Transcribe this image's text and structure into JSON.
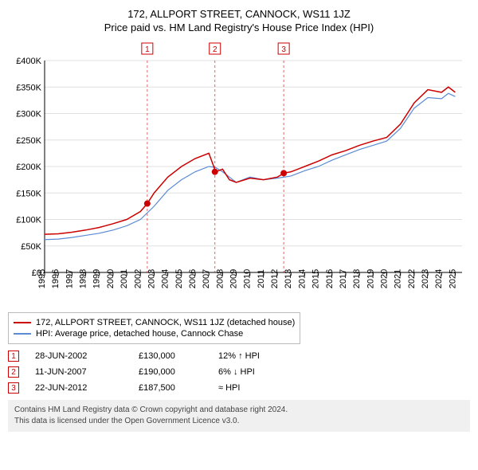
{
  "header": {
    "address": "172, ALLPORT STREET, CANNOCK, WS11 1JZ",
    "subtitle": "Price paid vs. HM Land Registry's House Price Index (HPI)"
  },
  "chart": {
    "type": "line",
    "background_color": "#ffffff",
    "grid_color": "#e0e0e0",
    "axis_color": "#000000",
    "xlim": [
      1995,
      2025.5
    ],
    "ylim": [
      0,
      400000
    ],
    "ytick_step": 50000,
    "yticks": [
      "£0",
      "£50K",
      "£100K",
      "£150K",
      "£200K",
      "£250K",
      "£300K",
      "£350K",
      "£400K"
    ],
    "xticks": [
      1995,
      1996,
      1997,
      1998,
      1999,
      2000,
      2001,
      2002,
      2003,
      2004,
      2005,
      2006,
      2007,
      2008,
      2009,
      2010,
      2011,
      2012,
      2013,
      2014,
      2015,
      2016,
      2017,
      2018,
      2019,
      2020,
      2021,
      2022,
      2023,
      2024,
      2025
    ],
    "series": [
      {
        "name": "172, ALLPORT STREET, CANNOCK, WS11 1JZ (detached house)",
        "color": "#cc0000",
        "line_width": 1.5,
        "data": [
          [
            1995,
            72000
          ],
          [
            1996,
            73000
          ],
          [
            1997,
            76000
          ],
          [
            1998,
            80000
          ],
          [
            1999,
            85000
          ],
          [
            2000,
            92000
          ],
          [
            2001,
            100000
          ],
          [
            2002,
            115000
          ],
          [
            2002.5,
            130000
          ],
          [
            2003,
            150000
          ],
          [
            2004,
            180000
          ],
          [
            2005,
            200000
          ],
          [
            2006,
            215000
          ],
          [
            2007,
            225000
          ],
          [
            2007.5,
            190000
          ],
          [
            2008,
            195000
          ],
          [
            2008.5,
            175000
          ],
          [
            2009,
            170000
          ],
          [
            2010,
            178000
          ],
          [
            2011,
            175000
          ],
          [
            2012,
            180000
          ],
          [
            2012.5,
            187500
          ],
          [
            2013,
            190000
          ],
          [
            2014,
            200000
          ],
          [
            2015,
            210000
          ],
          [
            2016,
            222000
          ],
          [
            2017,
            230000
          ],
          [
            2018,
            240000
          ],
          [
            2019,
            248000
          ],
          [
            2020,
            255000
          ],
          [
            2021,
            280000
          ],
          [
            2022,
            320000
          ],
          [
            2023,
            345000
          ],
          [
            2024,
            340000
          ],
          [
            2024.5,
            350000
          ],
          [
            2025,
            340000
          ]
        ]
      },
      {
        "name": "HPI: Average price, detached house, Cannock Chase",
        "color": "#5b8bd4",
        "line_width": 1.2,
        "data": [
          [
            1995,
            62000
          ],
          [
            1996,
            63000
          ],
          [
            1997,
            66000
          ],
          [
            1998,
            70000
          ],
          [
            1999,
            74000
          ],
          [
            2000,
            80000
          ],
          [
            2001,
            88000
          ],
          [
            2002,
            100000
          ],
          [
            2003,
            125000
          ],
          [
            2004,
            155000
          ],
          [
            2005,
            175000
          ],
          [
            2006,
            190000
          ],
          [
            2007,
            200000
          ],
          [
            2007.5,
            198000
          ],
          [
            2008,
            190000
          ],
          [
            2009,
            170000
          ],
          [
            2010,
            180000
          ],
          [
            2011,
            175000
          ],
          [
            2012,
            178000
          ],
          [
            2013,
            182000
          ],
          [
            2014,
            192000
          ],
          [
            2015,
            200000
          ],
          [
            2016,
            212000
          ],
          [
            2017,
            222000
          ],
          [
            2018,
            232000
          ],
          [
            2019,
            240000
          ],
          [
            2020,
            248000
          ],
          [
            2021,
            272000
          ],
          [
            2022,
            310000
          ],
          [
            2023,
            330000
          ],
          [
            2024,
            328000
          ],
          [
            2024.5,
            338000
          ],
          [
            2025,
            332000
          ]
        ]
      }
    ],
    "sale_markers": [
      {
        "n": "1",
        "x": 2002.5,
        "y": 130000
      },
      {
        "n": "2",
        "x": 2007.44,
        "y": 190000
      },
      {
        "n": "3",
        "x": 2012.47,
        "y": 187500
      }
    ],
    "marker_color": "#cc0000",
    "marker_fill": "#cc0000"
  },
  "legend": {
    "items": [
      {
        "color": "#cc0000",
        "label": "172, ALLPORT STREET, CANNOCK, WS11 1JZ (detached house)"
      },
      {
        "color": "#5b8bd4",
        "label": "HPI: Average price, detached house, Cannock Chase"
      }
    ]
  },
  "sales": [
    {
      "n": "1",
      "date": "28-JUN-2002",
      "price": "£130,000",
      "delta": "12% ↑ HPI"
    },
    {
      "n": "2",
      "date": "11-JUN-2007",
      "price": "£190,000",
      "delta": "6% ↓ HPI"
    },
    {
      "n": "3",
      "date": "22-JUN-2012",
      "price": "£187,500",
      "delta": "≈ HPI"
    }
  ],
  "attribution": {
    "line1": "Contains HM Land Registry data © Crown copyright and database right 2024.",
    "line2": "This data is licensed under the Open Government Licence v3.0."
  }
}
